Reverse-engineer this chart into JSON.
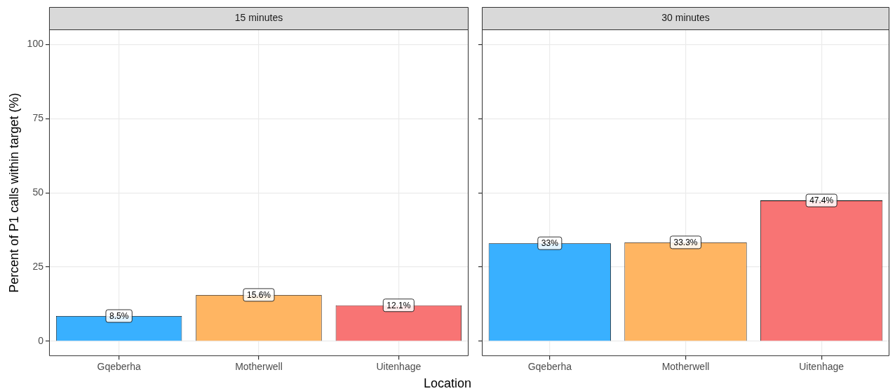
{
  "chart_data": [
    {
      "type": "bar",
      "title": "15 minutes",
      "xlabel": "Location",
      "ylabel": "Percent of P1 calls within target (%)",
      "categories": [
        "Gqeberha",
        "Motherwell",
        "Uitenhage"
      ],
      "values": [
        8.5,
        15.6,
        12.1
      ],
      "colors": [
        "#39b0ff",
        "#ffb562",
        "#f87474"
      ],
      "value_labels": [
        "8.5%",
        "15.6%",
        "12.1%"
      ],
      "ylim": [
        -5,
        105
      ],
      "yticks": [
        0,
        25,
        50,
        75,
        100
      ],
      "grid": true
    },
    {
      "type": "bar",
      "title": "30 minutes",
      "categories": [
        "Gqeberha",
        "Motherwell",
        "Uitenhage"
      ],
      "values": [
        33,
        33.3,
        47.4
      ],
      "colors": [
        "#39b0ff",
        "#ffb562",
        "#f87474"
      ],
      "value_labels": [
        "33%",
        "33.3%",
        "47.4%"
      ],
      "ylim": [
        -5,
        105
      ],
      "yticks": [
        0,
        25,
        50,
        75,
        100
      ],
      "grid": true,
      "tick_labels": "x"
    }
  ]
}
